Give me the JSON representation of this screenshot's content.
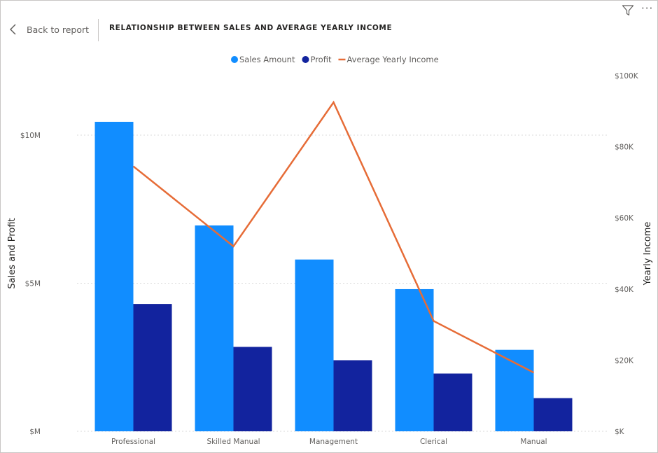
{
  "header": {
    "back_label": "Back to report",
    "title": "RELATIONSHIP BETWEEN SALES AND AVERAGE YEARLY INCOME",
    "more_label": "···"
  },
  "icons": {
    "back": "chevron-left-icon",
    "filter": "filter-icon",
    "more": "more-options-icon"
  },
  "colors": {
    "sales": "#118DFF",
    "profit": "#12239E",
    "income": "#E66C37",
    "grid": "#d9d9d9",
    "text": "#605e5c"
  },
  "chart_data": {
    "type": "bar",
    "categories": [
      "Professional",
      "Skilled Manual",
      "Management",
      "Clerical",
      "Manual"
    ],
    "series": [
      {
        "name": "Sales Amount",
        "type": "bar",
        "axis": "left",
        "values": [
          10.45,
          6.95,
          5.8,
          4.8,
          2.75
        ]
      },
      {
        "name": "Profit",
        "type": "bar",
        "axis": "left",
        "values": [
          4.3,
          2.85,
          2.4,
          1.95,
          1.12
        ]
      },
      {
        "name": "Average Yearly Income",
        "type": "line",
        "axis": "right",
        "values": [
          74500,
          52000,
          92500,
          31000,
          16500
        ]
      }
    ],
    "ylabel": "Sales and Profit",
    "y2label": "Yearly Income",
    "ylim": [
      0,
      10
    ],
    "y2lim": [
      0,
      100000
    ],
    "y_ticks": [
      {
        "value": 0,
        "label": "$M"
      },
      {
        "value": 5,
        "label": "$5M"
      },
      {
        "value": 10,
        "label": "$10M"
      }
    ],
    "y2_ticks": [
      {
        "value": 0,
        "label": "$K"
      },
      {
        "value": 20000,
        "label": "$20K"
      },
      {
        "value": 40000,
        "label": "$40K"
      },
      {
        "value": 60000,
        "label": "$60K"
      },
      {
        "value": 80000,
        "label": "$80K"
      },
      {
        "value": 100000,
        "label": "$100K"
      }
    ],
    "legend_position": "top-center",
    "grid": true
  }
}
